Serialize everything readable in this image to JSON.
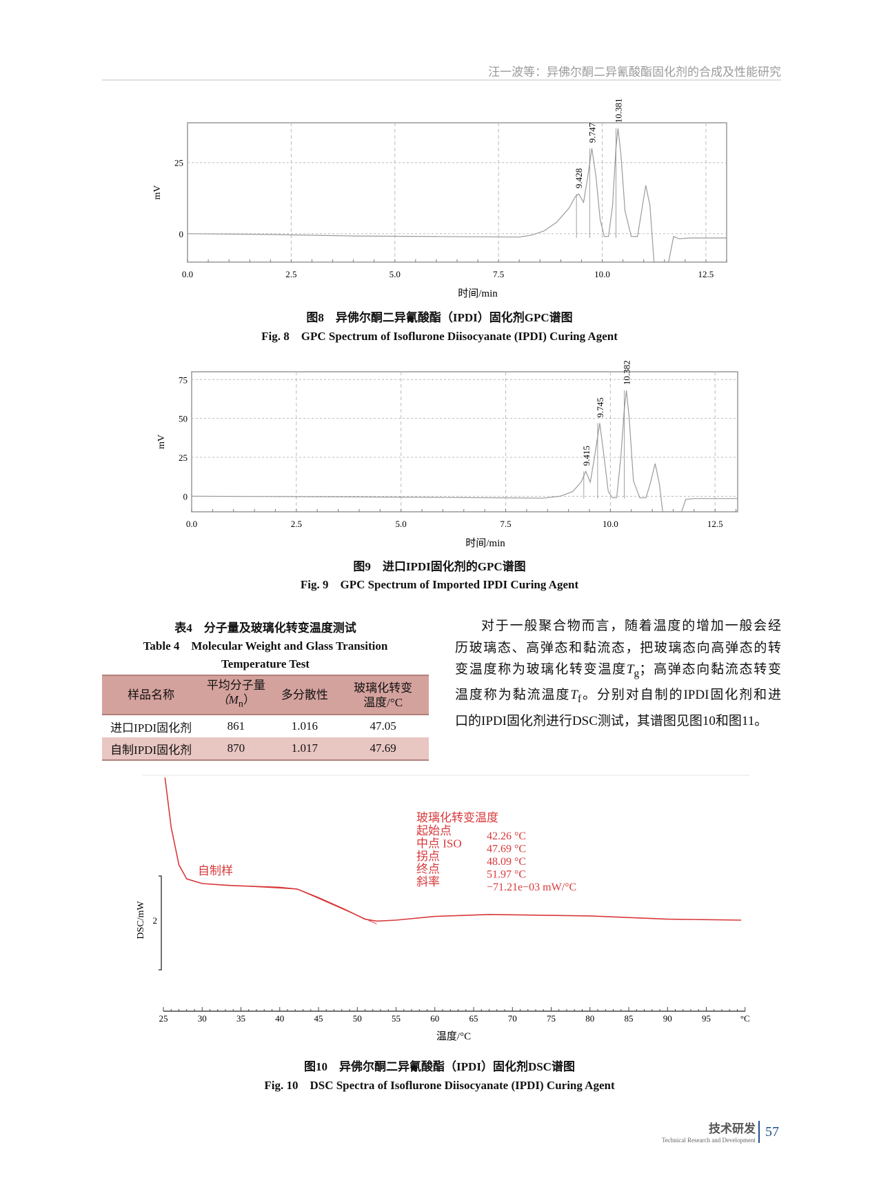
{
  "running_head": "汪一波等：异佛尔酮二异氰酸酯固化剂的合成及性能研究",
  "chart_data": [
    {
      "type": "line",
      "id": "fig8",
      "xlabel": "时间/min",
      "ylabel": "mV",
      "xlim": [
        0,
        13.0
      ],
      "ylim": [
        -10,
        39
      ],
      "xticks": [
        "0.0",
        "2.5",
        "5.0",
        "7.5",
        "10.0",
        "12.5"
      ],
      "xtick_values": [
        0,
        2.5,
        5,
        7.5,
        10,
        12.5
      ],
      "yticks": [
        "0",
        "25"
      ],
      "ytick_values": [
        0,
        25
      ],
      "grid": true,
      "color": "#9a9a9a",
      "points": [
        [
          0,
          0
        ],
        [
          2,
          -0.3
        ],
        [
          4,
          -0.8
        ],
        [
          6,
          -1
        ],
        [
          8,
          -1.2
        ],
        [
          8.3,
          -0.5
        ],
        [
          8.6,
          1
        ],
        [
          8.9,
          4
        ],
        [
          9.2,
          9
        ],
        [
          9.35,
          13
        ],
        [
          9.43,
          14
        ],
        [
          9.55,
          11
        ],
        [
          9.65,
          20
        ],
        [
          9.75,
          30
        ],
        [
          9.85,
          20
        ],
        [
          9.95,
          5
        ],
        [
          10.05,
          -1
        ],
        [
          10.15,
          -1
        ],
        [
          10.25,
          10
        ],
        [
          10.33,
          30
        ],
        [
          10.38,
          37
        ],
        [
          10.45,
          28
        ],
        [
          10.55,
          8
        ],
        [
          10.7,
          -1
        ],
        [
          10.85,
          -1
        ],
        [
          10.95,
          8
        ],
        [
          11.05,
          17
        ],
        [
          11.15,
          10
        ],
        [
          11.25,
          -10
        ],
        [
          11.6,
          -10
        ],
        [
          11.72,
          -1
        ],
        [
          11.85,
          -1.8
        ],
        [
          12.1,
          -1.5
        ],
        [
          13,
          -1.5
        ]
      ],
      "peak_labels": [
        {
          "x": 9.428,
          "y": 14,
          "text": "9.428"
        },
        {
          "x": 9.747,
          "y": 30,
          "text": "9.747"
        },
        {
          "x": 10.381,
          "y": 37,
          "text": "10.381"
        }
      ],
      "caption_cn": "图8　异佛尔酮二异氰酸酯（IPDI）固化剂GPC谱图",
      "caption_en": "Fig. 8　GPC Spectrum of Isoflurone Diisocyanate (IPDI) Curing Agent"
    },
    {
      "type": "line",
      "id": "fig9",
      "xlabel": "时间/min",
      "ylabel": "mV",
      "xlim": [
        0,
        13.04
      ],
      "ylim": [
        -10,
        80
      ],
      "xticks": [
        "0.0",
        "2.5",
        "5.0",
        "7.5",
        "10.0",
        "12.5"
      ],
      "xtick_values": [
        0,
        2.5,
        5,
        7.5,
        10,
        12.5
      ],
      "yticks": [
        "0",
        "25",
        "50",
        "75"
      ],
      "ytick_values": [
        0,
        25,
        50,
        75
      ],
      "grid": true,
      "color": "#9a9a9a",
      "points": [
        [
          0,
          0
        ],
        [
          3,
          -0.3
        ],
        [
          6,
          -0.8
        ],
        [
          8.4,
          -1.2
        ],
        [
          8.8,
          0
        ],
        [
          9.1,
          3
        ],
        [
          9.3,
          9
        ],
        [
          9.415,
          16
        ],
        [
          9.52,
          9
        ],
        [
          9.62,
          25
        ],
        [
          9.745,
          47
        ],
        [
          9.85,
          25
        ],
        [
          9.95,
          3
        ],
        [
          10.05,
          -1
        ],
        [
          10.15,
          -1
        ],
        [
          10.25,
          25
        ],
        [
          10.33,
          55
        ],
        [
          10.382,
          68
        ],
        [
          10.45,
          50
        ],
        [
          10.55,
          10
        ],
        [
          10.7,
          -1
        ],
        [
          10.85,
          -1
        ],
        [
          10.95,
          8
        ],
        [
          11.07,
          21
        ],
        [
          11.17,
          8
        ],
        [
          11.25,
          -10
        ],
        [
          11.7,
          -10
        ],
        [
          11.8,
          -2
        ],
        [
          12.0,
          -1.5
        ],
        [
          13.04,
          -1.5
        ]
      ],
      "peak_labels": [
        {
          "x": 9.415,
          "y": 16,
          "text": "9.415"
        },
        {
          "x": 9.745,
          "y": 47,
          "text": "9.745"
        },
        {
          "x": 10.382,
          "y": 68,
          "text": "10.382"
        }
      ],
      "caption_cn": "图9　进口IPDI固化剂的GPC谱图",
      "caption_en": "Fig. 9　GPC Spectrum of Imported IPDI Curing Agent"
    },
    {
      "type": "line",
      "id": "fig10",
      "xlabel": "温度/°C",
      "ylabel": "DSC/mW",
      "xlim": [
        25,
        100
      ],
      "xticks": [
        "25",
        "30",
        "35",
        "40",
        "45",
        "50",
        "55",
        "60",
        "65",
        "70",
        "75",
        "80",
        "85",
        "90",
        "95",
        "°C"
      ],
      "xtick_values": [
        25,
        30,
        35,
        40,
        45,
        50,
        55,
        60,
        65,
        70,
        75,
        80,
        85,
        90,
        95,
        100
      ],
      "yticks": [
        "2"
      ],
      "ytick_values": [
        2
      ],
      "grid": false,
      "color": "#d8383a",
      "points": [
        [
          25.2,
          3.52
        ],
        [
          26,
          2.99
        ],
        [
          27,
          2.59
        ],
        [
          28,
          2.44
        ],
        [
          30,
          2.39
        ],
        [
          33.5,
          2.37
        ],
        [
          40,
          2.35
        ],
        [
          42.3,
          2.33
        ],
        [
          45,
          2.24
        ],
        [
          48,
          2.13
        ],
        [
          51,
          2.01
        ],
        [
          52.5,
          1.99
        ],
        [
          55,
          2.0
        ],
        [
          60,
          2.04
        ],
        [
          67,
          2.06
        ],
        [
          80,
          2.045
        ],
        [
          90,
          2.01
        ],
        [
          99.5,
          2.0
        ]
      ],
      "series_label": "自制样",
      "annotation": {
        "title": "玻璃化转变温度",
        "rows": [
          {
            "label": "起始点",
            "value": "42.26 °C"
          },
          {
            "label": "中点 ISO",
            "value": "47.69 °C"
          },
          {
            "label": "拐点",
            "value": "48.09 °C"
          },
          {
            "label": "终点",
            "value": "51.97 °C"
          },
          {
            "label": "斜率",
            "value": "−71.21e−03 mW/°C"
          }
        ]
      },
      "caption_cn": "图10　异佛尔酮二异氰酸酯（IPDI）固化剂DSC谱图",
      "caption_en": "Fig. 10　DSC Spectra of Isoflurone Diisocyanate (IPDI) Curing Agent"
    }
  ],
  "table": {
    "title_cn": "表4　分子量及玻璃化转变温度测试",
    "title_en_1": "Table 4　Molecular Weight and Glass Transition",
    "title_en_2": "Temperature Test",
    "headers": [
      "样品名称",
      "平均分子量",
      "多分散性",
      "玻璃化转变"
    ],
    "headers_2": [
      "",
      "（M",
      "",
      "温度/°C"
    ],
    "mn_sub": "n",
    "mn_close": "）",
    "rows": [
      [
        "进口IPDI固化剂",
        "861",
        "1.016",
        "47.05"
      ],
      [
        "自制IPDI固化剂",
        "870",
        "1.017",
        "47.69"
      ]
    ],
    "header_color": "#d4a29d",
    "alt_row_color": "#e8c6c2"
  },
  "paragraph": {
    "line1": "对于一般聚合物而言，随着温度的增加一般会经",
    "line2": "历玻璃态、高弹态和黏流态，把玻璃态向高弹态的转",
    "line3a": "变温度称为玻璃化转变温度",
    "tg": "T",
    "tg_sub": "g",
    "line3b": "；高弹态向黏流态转变",
    "line4a": "温度称为黏流温度",
    "tf": "T",
    "tf_sub": "f",
    "line4b": "。分别对自制的IPDI固化剂和进",
    "line5": "口的IPDI固化剂进行DSC测试，其谱图见图10和图11。"
  },
  "footer": {
    "section_cn": "技术研发",
    "section_en": "Technical Research and Development",
    "page_number": "57",
    "accent": "#1f4e8c"
  }
}
